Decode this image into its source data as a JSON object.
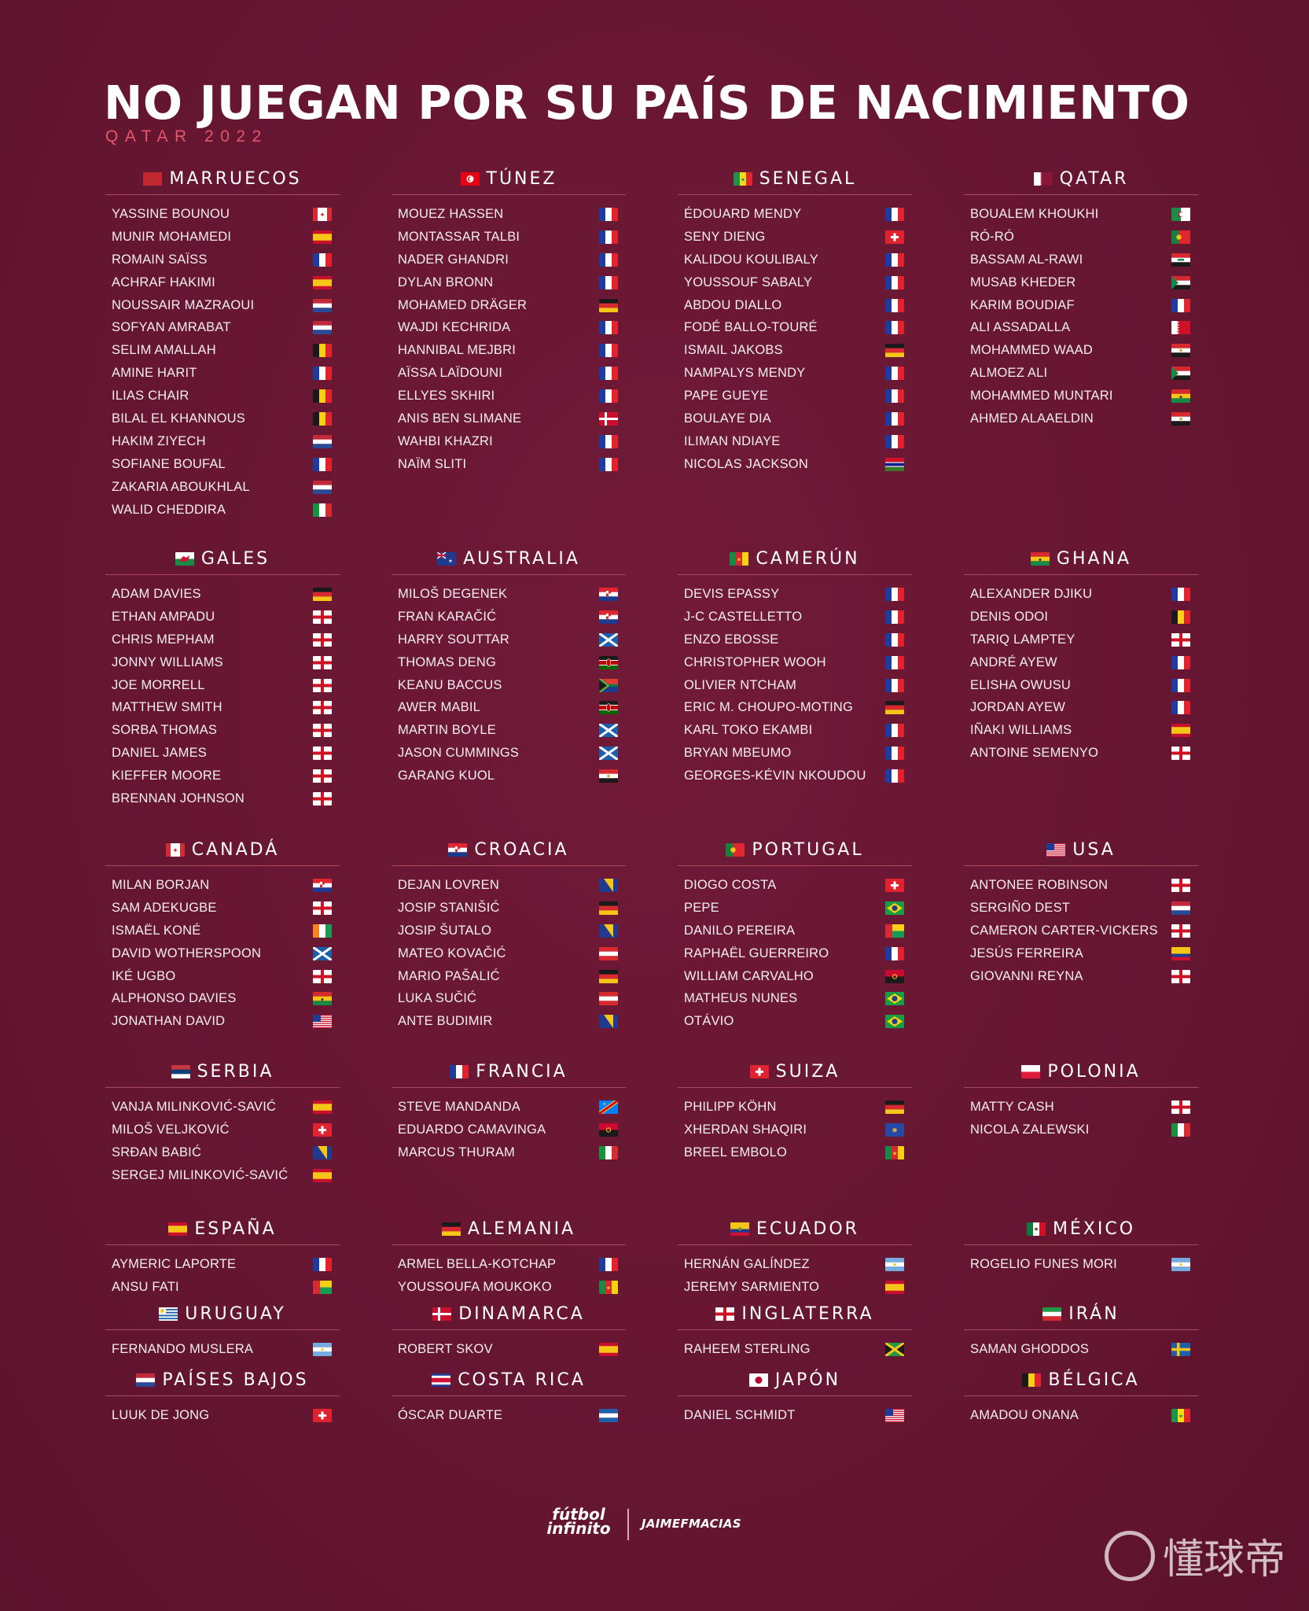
{
  "title": "NO JUEGAN POR SU PAÍS DE NACIMIENTO",
  "subtitle": "QATAR 2022",
  "groups": [
    [
      {
        "country": "MARRUECOS",
        "flag": "morocco",
        "players": [
          [
            "YASSINE BOUNOU",
            "canada"
          ],
          [
            "MUNIR MOHAMEDI",
            "spain"
          ],
          [
            "ROMAIN SAÏSS",
            "france"
          ],
          [
            "ACHRAF HAKIMI",
            "spain"
          ],
          [
            "NOUSSAIR MAZRAOUI",
            "netherlands"
          ],
          [
            "SOFYAN AMRABAT",
            "netherlands"
          ],
          [
            "SELIM AMALLAH",
            "belgium"
          ],
          [
            "AMINE HARIT",
            "france"
          ],
          [
            "ILIAS CHAIR",
            "belgium"
          ],
          [
            "BILAL EL KHANNOUS",
            "belgium"
          ],
          [
            "HAKIM ZIYECH",
            "netherlands"
          ],
          [
            "SOFIANE BOUFAL",
            "france"
          ],
          [
            "ZAKARIA ABOUKHLAL",
            "netherlands"
          ],
          [
            "WALID CHEDDIRA",
            "italy"
          ]
        ]
      },
      {
        "country": "TÚNEZ",
        "flag": "tunisia",
        "players": [
          [
            "MOUEZ HASSEN",
            "france"
          ],
          [
            "MONTASSAR TALBI",
            "france"
          ],
          [
            "NADER GHANDRI",
            "france"
          ],
          [
            "DYLAN BRONN",
            "france"
          ],
          [
            "MOHAMED DRÄGER",
            "germany"
          ],
          [
            "WAJDI KECHRIDA",
            "france"
          ],
          [
            "HANNIBAL MEJBRI",
            "france"
          ],
          [
            "AÏSSA LAÏDOUNI",
            "france"
          ],
          [
            "ELLYES SKHIRI",
            "france"
          ],
          [
            "ANIS BEN SLIMANE",
            "denmark"
          ],
          [
            "WAHBI KHAZRI",
            "france"
          ],
          [
            "NAÏM SLITI",
            "france"
          ]
        ]
      },
      {
        "country": "SENEGAL",
        "flag": "senegal",
        "players": [
          [
            "ÉDOUARD MENDY",
            "france"
          ],
          [
            "SENY DIENG",
            "switzerland"
          ],
          [
            "KALIDOU KOULIBALY",
            "france"
          ],
          [
            "YOUSSOUF SABALY",
            "france"
          ],
          [
            "ABDOU DIALLO",
            "france"
          ],
          [
            "FODÉ BALLO-TOURÉ",
            "france"
          ],
          [
            "ISMAIL JAKOBS",
            "germany"
          ],
          [
            "NAMPALYS MENDY",
            "france"
          ],
          [
            "PAPE GUEYE",
            "france"
          ],
          [
            "BOULAYE DIA",
            "france"
          ],
          [
            "ILIMAN NDIAYE",
            "france"
          ],
          [
            "NICOLAS JACKSON",
            "gambia"
          ]
        ]
      },
      {
        "country": "QATAR",
        "flag": "qatar",
        "players": [
          [
            "BOUALEM KHOUKHI",
            "algeria"
          ],
          [
            "RÓ-RÓ",
            "portugal"
          ],
          [
            "BASSAM AL-RAWI",
            "iraq"
          ],
          [
            "MUSAB KHEDER",
            "sudan"
          ],
          [
            "KARIM BOUDIAF",
            "france"
          ],
          [
            "ALI ASSADALLA",
            "bahrain"
          ],
          [
            "MOHAMMED WAAD",
            "egypt"
          ],
          [
            "ALMOEZ ALI",
            "sudan"
          ],
          [
            "MOHAMMED MUNTARI",
            "ghana"
          ],
          [
            "AHMED ALAAELDIN",
            "egypt"
          ]
        ]
      }
    ],
    [
      {
        "country": "GALES",
        "flag": "wales",
        "players": [
          [
            "ADAM DAVIES",
            "germany"
          ],
          [
            "ETHAN AMPADU",
            "england"
          ],
          [
            "CHRIS MEPHAM",
            "england"
          ],
          [
            "JONNY WILLIAMS",
            "england"
          ],
          [
            "JOE MORRELL",
            "england"
          ],
          [
            "MATTHEW SMITH",
            "england"
          ],
          [
            "SORBA THOMAS",
            "england"
          ],
          [
            "DANIEL JAMES",
            "england"
          ],
          [
            "KIEFFER MOORE",
            "england"
          ],
          [
            "BRENNAN JOHNSON",
            "england"
          ]
        ]
      },
      {
        "country": "AUSTRALIA",
        "flag": "australia",
        "players": [
          [
            "MILOŠ DEGENEK",
            "croatia"
          ],
          [
            "FRAN KARAČIĆ",
            "croatia"
          ],
          [
            "HARRY SOUTTAR",
            "scotland"
          ],
          [
            "THOMAS DENG",
            "kenya"
          ],
          [
            "KEANU BACCUS",
            "southafrica"
          ],
          [
            "AWER MABIL",
            "kenya"
          ],
          [
            "MARTIN BOYLE",
            "scotland"
          ],
          [
            "JASON CUMMINGS",
            "scotland"
          ],
          [
            "GARANG KUOL",
            "egypt"
          ]
        ]
      },
      {
        "country": "CAMERÚN",
        "flag": "cameroon",
        "players": [
          [
            "DEVIS EPASSY",
            "france"
          ],
          [
            "J-C CASTELLETTO",
            "france"
          ],
          [
            "ENZO EBOSSE",
            "france"
          ],
          [
            "CHRISTOPHER WOOH",
            "france"
          ],
          [
            "OLIVIER NTCHAM",
            "france"
          ],
          [
            "ERIC M. CHOUPO-MOTING",
            "germany"
          ],
          [
            "KARL TOKO EKAMBI",
            "france"
          ],
          [
            "BRYAN MBEUMO",
            "france"
          ],
          [
            "GEORGES-KÉVIN NKOUDOU",
            "france"
          ]
        ]
      },
      {
        "country": "GHANA",
        "flag": "ghana",
        "players": [
          [
            "ALEXANDER DJIKU",
            "france"
          ],
          [
            "DENIS ODOI",
            "belgium"
          ],
          [
            "TARIQ LAMPTEY",
            "england"
          ],
          [
            "ANDRÉ AYEW",
            "france"
          ],
          [
            "ELISHA OWUSU",
            "france"
          ],
          [
            "JORDAN AYEW",
            "france"
          ],
          [
            "IÑAKI WILLIAMS",
            "spain"
          ],
          [
            "ANTOINE SEMENYO",
            "england"
          ]
        ]
      }
    ],
    [
      {
        "country": "CANADÁ",
        "flag": "canada",
        "players": [
          [
            "MILAN BORJAN",
            "croatia"
          ],
          [
            "SAM ADEKUGBE",
            "england"
          ],
          [
            "ISMAËL KONÉ",
            "ivorycoast"
          ],
          [
            "DAVID WOTHERSPOON",
            "scotland"
          ],
          [
            "IKÉ UGBO",
            "england"
          ],
          [
            "ALPHONSO DAVIES",
            "ghana"
          ],
          [
            "JONATHAN DAVID",
            "usa"
          ]
        ]
      },
      {
        "country": "CROACIA",
        "flag": "croatia",
        "players": [
          [
            "DEJAN LOVREN",
            "bosnia"
          ],
          [
            "JOSIP STANIŠIĆ",
            "germany"
          ],
          [
            "JOSIP ŠUTALO",
            "bosnia"
          ],
          [
            "MATEO KOVAČIĆ",
            "austria"
          ],
          [
            "MARIO PAŠALIĆ",
            "germany"
          ],
          [
            "LUKA SUČIĆ",
            "austria"
          ],
          [
            "ANTE BUDIMIR",
            "bosnia"
          ]
        ]
      },
      {
        "country": "PORTUGAL",
        "flag": "portugal",
        "players": [
          [
            "DIOGO COSTA",
            "switzerland"
          ],
          [
            "PEPE",
            "brazil"
          ],
          [
            "DANILO PEREIRA",
            "guineabissau"
          ],
          [
            "RAPHAËL GUERREIRO",
            "france"
          ],
          [
            "WILLIAM CARVALHO",
            "angola"
          ],
          [
            "MATHEUS NUNES",
            "brazil"
          ],
          [
            "OTÁVIO",
            "brazil"
          ]
        ]
      },
      {
        "country": "USA",
        "flag": "usa",
        "players": [
          [
            "ANTONEE ROBINSON",
            "england"
          ],
          [
            "SERGIÑO DEST",
            "netherlands"
          ],
          [
            "CAMERON CARTER-VICKERS",
            "england"
          ],
          [
            "JESÚS FERREIRA",
            "colombia"
          ],
          [
            "GIOVANNI REYNA",
            "england"
          ]
        ]
      }
    ],
    [
      {
        "country": "SERBIA",
        "flag": "serbia",
        "players": [
          [
            "VANJA MILINKOVIĆ-SAVIĆ",
            "spain"
          ],
          [
            "MILOŠ VELJKOVIĆ",
            "switzerland"
          ],
          [
            "SRĐAN BABIĆ",
            "bosnia"
          ],
          [
            "SERGEJ MILINKOVIĆ-SAVIĆ",
            "spain"
          ]
        ]
      },
      {
        "country": "FRANCIA",
        "flag": "france",
        "players": [
          [
            "STEVE MANDANDA",
            "drcongo"
          ],
          [
            "EDUARDO CAMAVINGA",
            "angola"
          ],
          [
            "MARCUS THURAM",
            "italy"
          ]
        ]
      },
      {
        "country": "SUIZA",
        "flag": "switzerland",
        "players": [
          [
            "PHILIPP KÖHN",
            "germany"
          ],
          [
            "XHERDAN SHAQIRI",
            "kosovo"
          ],
          [
            "BREEL EMBOLO",
            "cameroon"
          ]
        ]
      },
      {
        "country": "POLONIA",
        "flag": "poland",
        "players": [
          [
            "MATTY CASH",
            "england"
          ],
          [
            "NICOLA ZALEWSKI",
            "italy"
          ]
        ]
      }
    ],
    [
      {
        "country": "ESPAÑA",
        "flag": "spain",
        "players": [
          [
            "AYMERIC LAPORTE",
            "france"
          ],
          [
            "ANSU FATI",
            "guineabissau"
          ]
        ]
      },
      {
        "country": "ALEMANIA",
        "flag": "germany",
        "players": [
          [
            "ARMEL BELLA-KOTCHAP",
            "france"
          ],
          [
            "YOUSSOUFA MOUKOKO",
            "cameroon"
          ]
        ]
      },
      {
        "country": "ECUADOR",
        "flag": "ecuador",
        "players": [
          [
            "HERNÁN GALÍNDEZ",
            "argentina"
          ],
          [
            "JEREMY SARMIENTO",
            "spain"
          ]
        ]
      },
      {
        "country": "MÉXICO",
        "flag": "mexico",
        "players": [
          [
            "ROGELIO FUNES MORI",
            "argentina"
          ]
        ]
      }
    ],
    [
      {
        "country": "URUGUAY",
        "flag": "uruguay",
        "players": [
          [
            "FERNANDO MUSLERA",
            "argentina"
          ]
        ]
      },
      {
        "country": "DINAMARCA",
        "flag": "denmark",
        "players": [
          [
            "ROBERT SKOV",
            "spain"
          ]
        ]
      },
      {
        "country": "INGLATERRA",
        "flag": "england",
        "players": [
          [
            "RAHEEM STERLING",
            "jamaica"
          ]
        ]
      },
      {
        "country": "IRÁN",
        "flag": "iran",
        "players": [
          [
            "SAMAN GHODDOS",
            "sweden"
          ]
        ]
      }
    ],
    [
      {
        "country": "PAÍSES BAJOS",
        "flag": "netherlands",
        "players": [
          [
            "LUUK DE JONG",
            "switzerland"
          ]
        ]
      },
      {
        "country": "COSTA RICA",
        "flag": "costarica",
        "players": [
          [
            "ÓSCAR DUARTE",
            "nicaragua"
          ]
        ]
      },
      {
        "country": "JAPÓN",
        "flag": "japan",
        "players": [
          [
            "DANIEL SCHMIDT",
            "usa"
          ]
        ]
      },
      {
        "country": "BÉLGICA",
        "flag": "belgium",
        "players": [
          [
            "AMADOU ONANA",
            "senegal"
          ]
        ]
      }
    ]
  ],
  "footer": {
    "logo1": "fútbol infinito",
    "logo2": "JAIMEFMACIAS",
    "watermark": "懂球帝"
  },
  "colors": {
    "background": "#6b1834",
    "accent": "#e3566d",
    "rule": "#a94a61"
  }
}
